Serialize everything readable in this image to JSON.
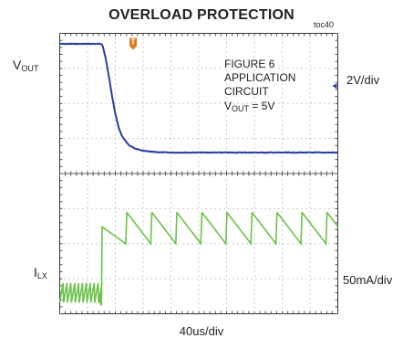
{
  "header": {
    "title": "OVERLOAD PROTECTION",
    "tag": "toc40"
  },
  "channels": [
    {
      "label_main": "V",
      "label_sub": "OUT",
      "scale": "2V/div",
      "color": "#2a3e9e"
    },
    {
      "label_main": "I",
      "label_sub": "LX",
      "scale": "50mA/div",
      "color": "#6cc24a"
    }
  ],
  "annotation": {
    "lines": [
      "FIGURE 6",
      "APPLICATION",
      "CIRCUIT"
    ],
    "vout_main": "V",
    "vout_sub": "OUT",
    "vout_value": " = 5V"
  },
  "timebase": "40us/div",
  "trigger_marker": {
    "text": "T",
    "color": "#e07a20"
  },
  "chart_data": {
    "type": "line",
    "grid": {
      "x_divisions": 10,
      "y_divisions": 8,
      "ch1_divisions": 4,
      "ch2_divisions": 4
    },
    "x_unit": "us",
    "x_per_div": 40,
    "xlim": [
      0,
      400
    ],
    "series": [
      {
        "name": "VOUT",
        "unit": "V",
        "per_div": 2,
        "ylim": [
          -6,
          2
        ],
        "x": [
          0,
          20,
          40,
          60,
          62,
          66,
          70,
          75,
          80,
          85,
          90,
          100,
          110,
          120,
          130,
          140,
          160,
          200,
          250,
          300,
          350,
          400
        ],
        "values": [
          1.4,
          1.4,
          1.4,
          1.4,
          1.25,
          0.6,
          -0.3,
          -1.5,
          -2.6,
          -3.4,
          -3.9,
          -4.4,
          -4.6,
          -4.7,
          -4.75,
          -4.78,
          -4.8,
          -4.8,
          -4.8,
          -4.8,
          -4.8,
          -4.8
        ]
      },
      {
        "name": "ILX",
        "unit": "mA",
        "per_div": 50,
        "ylim": [
          0,
          200
        ],
        "phase1": {
          "x_start": 0,
          "x_end": 58,
          "period": 5.6,
          "low": 16,
          "high": 44
        },
        "rise": {
          "x": 60,
          "from": 12,
          "to": 80
        },
        "phase2": {
          "x_start": 60,
          "x_end": 400,
          "period": 36,
          "low": 100,
          "high": 144,
          "first_peak": 124
        }
      }
    ]
  }
}
